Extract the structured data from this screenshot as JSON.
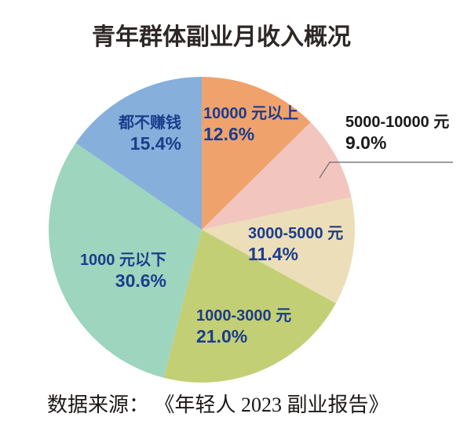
{
  "page": {
    "title": "青年群体副业月收入概况",
    "source_note": "数据来源： 《年轻人 2023 副业报告》"
  },
  "colors": {
    "background": "#FFFFFF",
    "title_text": "#2D2725",
    "slice_label_text": "#1C3D8C",
    "outside_label_text": "#1A1A1A",
    "leader_line": "#7D7D7D",
    "source_text": "#1C1816"
  },
  "chart_data": {
    "type": "pie",
    "title": "青年群体副业月收入概况",
    "unit": "%",
    "start_angle_deg": 0,
    "direction": "clockwise",
    "legend_position": "none",
    "slices": [
      {
        "label": "10000 元以上",
        "value": 12.6,
        "pct_label": "12.6%",
        "color": "#F0A26D",
        "label_placement": "inside"
      },
      {
        "label": "5000-10000 元",
        "value": 9.0,
        "pct_label": "9.0%",
        "color": "#F2C6BF",
        "label_placement": "outside-callout"
      },
      {
        "label": "3000-5000 元",
        "value": 11.4,
        "pct_label": "11.4%",
        "color": "#ECDEB8",
        "label_placement": "inside"
      },
      {
        "label": "1000-3000 元",
        "value": 21.0,
        "pct_label": "21.0%",
        "color": "#C3CF75",
        "label_placement": "inside"
      },
      {
        "label": "1000 元以下",
        "value": 30.6,
        "pct_label": "30.6%",
        "color": "#9DD5BE",
        "label_placement": "inside"
      },
      {
        "label": "都不赚钱",
        "value": 15.4,
        "pct_label": "15.4%",
        "color": "#86B0DB",
        "label_placement": "inside"
      }
    ],
    "source": "数据来源： 《年轻人 2023 副业报告》"
  }
}
